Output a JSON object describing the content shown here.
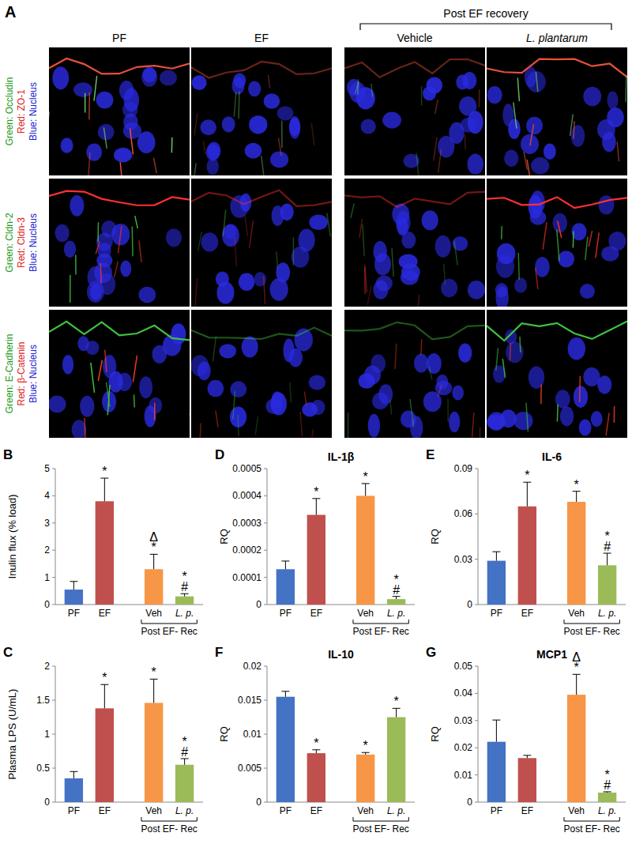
{
  "panel_a": {
    "label": "A",
    "columns": [
      "PF",
      "EF",
      "Vehicle",
      "L. plantarum"
    ],
    "group_label": "Post EF recovery",
    "rows": [
      [
        "Green: Occludin",
        "Red: ZO-1",
        "Blue: Nucleus"
      ],
      [
        "Green: Cldn-2",
        "Red: Cldn-3",
        "Blue: Nucleus"
      ],
      [
        "Green: E-Cadherin",
        "Red: β-Catenin",
        "Blue: Nucleus"
      ]
    ]
  },
  "chart_data": [
    {
      "type": "bar",
      "panel": "B",
      "y_label": "Inulin flux (% load)",
      "categories": [
        "PF",
        "EF",
        "Veh",
        "L. p."
      ],
      "group_label": "Post EF- Rec",
      "values": [
        0.55,
        3.8,
        1.3,
        0.3
      ],
      "errors": [
        0.3,
        0.85,
        0.55,
        0.1
      ],
      "significance": [
        null,
        [
          "*"
        ],
        [
          "Δ",
          "*"
        ],
        [
          "*",
          "#"
        ]
      ],
      "colors": [
        "#4472c4",
        "#c0504d",
        "#f79646",
        "#9bbb59"
      ],
      "ylim": [
        0,
        5
      ],
      "yticks": [
        0,
        1,
        2,
        3,
        4,
        5
      ],
      "grid": false
    },
    {
      "type": "bar",
      "panel": "C",
      "y_label": "Plasma LPS (U/mL)",
      "categories": [
        "PF",
        "EF",
        "Veh",
        "L. p."
      ],
      "group_label": "Post EF- Rec",
      "values": [
        0.35,
        1.38,
        1.46,
        0.55
      ],
      "errors": [
        0.1,
        0.35,
        0.35,
        0.09
      ],
      "significance": [
        null,
        [
          "*"
        ],
        [
          "*"
        ],
        [
          "*",
          "#"
        ]
      ],
      "colors": [
        "#4472c4",
        "#c0504d",
        "#f79646",
        "#9bbb59"
      ],
      "ylim": [
        0,
        2
      ],
      "yticks": [
        0,
        0.5,
        1,
        1.5,
        2
      ],
      "grid": false
    },
    {
      "type": "bar",
      "panel": "D",
      "title": "IL-1β",
      "y_label": "RQ",
      "categories": [
        "PF",
        "EF",
        "Veh",
        "L. p."
      ],
      "group_label": "Post EF- Rec",
      "values": [
        0.00013,
        0.00033,
        0.0004,
        2e-05
      ],
      "errors": [
        3e-05,
        6e-05,
        4.5e-05,
        1e-05
      ],
      "significance": [
        null,
        [
          "*"
        ],
        [
          "*"
        ],
        [
          "*",
          "#"
        ]
      ],
      "colors": [
        "#4472c4",
        "#c0504d",
        "#f79646",
        "#9bbb59"
      ],
      "ylim": [
        0,
        0.0005
      ],
      "yticks": [
        0,
        0.0001,
        0.0002,
        0.0003,
        0.0004,
        0.0005
      ],
      "grid": false
    },
    {
      "type": "bar",
      "panel": "E",
      "title": "IL-6",
      "y_label": "RQ",
      "categories": [
        "PF",
        "EF",
        "Veh",
        "L. p."
      ],
      "group_label": "Post EF- Rec",
      "values": [
        0.029,
        0.065,
        0.068,
        0.026
      ],
      "errors": [
        0.006,
        0.016,
        0.007,
        0.008
      ],
      "significance": [
        null,
        [
          "*"
        ],
        [
          "*"
        ],
        [
          "*",
          "#"
        ]
      ],
      "colors": [
        "#4472c4",
        "#c0504d",
        "#f79646",
        "#9bbb59"
      ],
      "ylim": [
        0,
        0.09
      ],
      "yticks": [
        0,
        0.03,
        0.06,
        0.09
      ],
      "grid": false
    },
    {
      "type": "bar",
      "panel": "F",
      "title": "IL-10",
      "y_label": "RQ",
      "categories": [
        "PF",
        "EF",
        "Veh",
        "L. p."
      ],
      "group_label": "Post EF- Rec",
      "values": [
        0.0155,
        0.0072,
        0.007,
        0.0125
      ],
      "errors": [
        0.0008,
        0.0005,
        0.0003,
        0.0013
      ],
      "significance": [
        null,
        [
          "*"
        ],
        [
          "*"
        ],
        [
          "*"
        ]
      ],
      "colors": [
        "#4472c4",
        "#c0504d",
        "#f79646",
        "#9bbb59"
      ],
      "ylim": [
        0,
        0.02
      ],
      "yticks": [
        0,
        0.005,
        0.01,
        0.015,
        0.02
      ],
      "grid": false
    },
    {
      "type": "bar",
      "panel": "G",
      "title": "MCP1",
      "y_label": "RQ",
      "categories": [
        "PF",
        "EF",
        "Veh",
        "L. p."
      ],
      "group_label": "Post EF- Rec",
      "values": [
        0.0222,
        0.0162,
        0.0395,
        0.0035
      ],
      "errors": [
        0.008,
        0.001,
        0.0075,
        0.0003
      ],
      "significance": [
        null,
        null,
        [
          "Δ",
          "*"
        ],
        [
          "*",
          "#"
        ]
      ],
      "colors": [
        "#4472c4",
        "#c0504d",
        "#f79646",
        "#9bbb59"
      ],
      "ylim": [
        0,
        0.05
      ],
      "yticks": [
        0,
        0.01,
        0.02,
        0.03,
        0.04,
        0.05
      ],
      "grid": false
    }
  ]
}
